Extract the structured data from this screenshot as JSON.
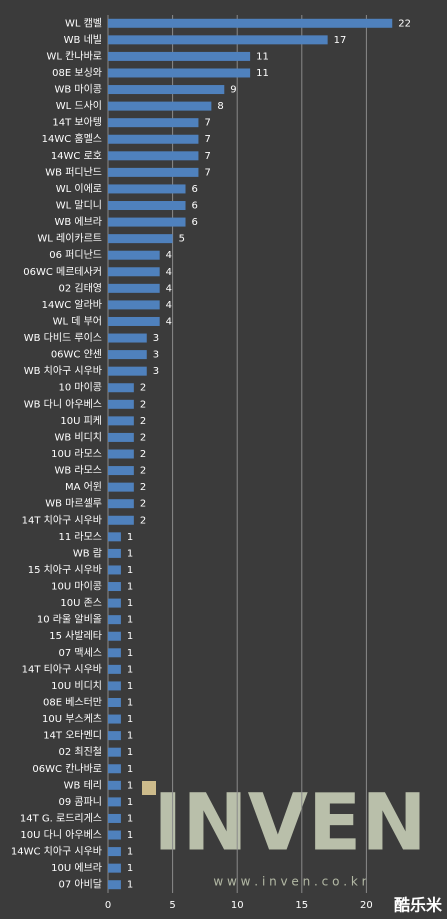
{
  "chart_data": {
    "type": "barh",
    "categories": [
      "WL 캠벨",
      "WB 네빌",
      "WL 칸나바로",
      "08E 보싱와",
      "WB 마이콩",
      "WL 드사이",
      "14T 보아텡",
      "14WC 훔멜스",
      "14WC 로호",
      "WB 퍼디난드",
      "WL 이에로",
      "WL 말디니",
      "WB 에브라",
      "WL 레이카르트",
      "06 퍼디난드",
      "06WC 메르테사커",
      "02 김태영",
      "14WC 알라바",
      "WL 데 부어",
      "WB 다비드 루이스",
      "06WC 얀센",
      "WB 치아구 시우바",
      "10 마이콩",
      "WB 다니 아우베스",
      "10U 피케",
      "WB 비디치",
      "10U 라모스",
      "WB 라모스",
      "MA 어윈",
      "WB 마르셀루",
      "14T 치아구 시우바",
      "11 라모스",
      "WB 람",
      "15 치아구 시우바",
      "10U 마이콩",
      "10U 존스",
      "10 라울 알비올",
      "15 사발레타",
      "07 맥세스",
      "14T 티아구 시우바",
      "10U 비디치",
      "08E 베스터만",
      "10U 부스케츠",
      "14T 오타멘디",
      "02 최진철",
      "06WC 칸나바로",
      "WB 테리",
      "09 콤파니",
      "14T G. 로드리게스",
      "10U 다니 아우베스",
      "14WC 치아구 시우바",
      "10U 에브라",
      "07 아비달"
    ],
    "values": [
      22,
      17,
      11,
      11,
      9,
      8,
      7,
      7,
      7,
      7,
      6,
      6,
      6,
      5,
      4,
      4,
      4,
      4,
      4,
      3,
      3,
      3,
      2,
      2,
      2,
      2,
      2,
      2,
      2,
      2,
      2,
      1,
      1,
      1,
      1,
      1,
      1,
      1,
      1,
      1,
      1,
      1,
      1,
      1,
      1,
      1,
      1,
      1,
      1,
      1,
      1,
      1,
      1
    ],
    "color": "#4f81bd",
    "xlim": [
      0,
      25
    ],
    "xticks": [
      0,
      5,
      10,
      15,
      20
    ],
    "grid": true,
    "annotations": [
      "INVEN",
      "w w w . i n v e n . c o . k r",
      "酷乐米"
    ]
  }
}
